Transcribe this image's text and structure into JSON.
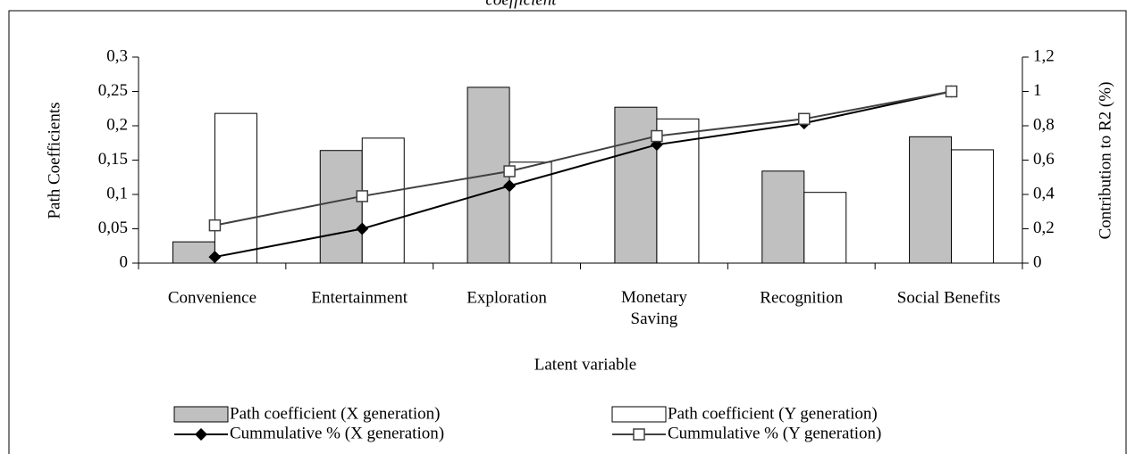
{
  "chart_data": {
    "type": "bar",
    "title": "coefficient",
    "x_label": "Latent variable",
    "y_label": "Path Coefficients",
    "y2_label": "Contribution to R2 (%)",
    "categories": [
      "Convenience",
      "Entertainment",
      "Exploration",
      "Monetary\nSaving",
      "Recognition",
      "Social Benefits"
    ],
    "ylim": [
      0,
      0.3
    ],
    "yticks": [
      0,
      {
        "value": 0.05,
        "label": "0,05"
      },
      {
        "value": 0.1,
        "label": "0,1"
      },
      {
        "value": 0.15,
        "label": "0,15"
      },
      {
        "value": 0.2,
        "label": "0,2"
      },
      {
        "value": 0.25,
        "label": "0,25"
      },
      {
        "value": 0.3,
        "label": "0,3"
      }
    ],
    "y2lim": [
      0,
      1.2
    ],
    "y2ticks": [
      0,
      {
        "value": 0.2,
        "label": "0,2"
      },
      {
        "value": 0.4,
        "label": "0,4"
      },
      {
        "value": 0.6,
        "label": "0,6"
      },
      {
        "value": 0.8,
        "label": "0,8"
      },
      1,
      {
        "value": 1.2,
        "label": "1,2"
      }
    ],
    "series": [
      {
        "name": "Path coefficient (X generation)",
        "type": "bar",
        "color": "#c0c0c0",
        "values": [
          0.031,
          0.164,
          0.256,
          0.227,
          0.134,
          0.184
        ]
      },
      {
        "name": "Path coefficient (Y generation)",
        "type": "bar",
        "color": "#ffffff",
        "values": [
          0.218,
          0.182,
          0.147,
          0.21,
          0.103,
          0.165
        ]
      },
      {
        "name": "Cummulative % (X generation)",
        "type": "line",
        "axis": "y2",
        "color": "#000000",
        "marker": "diamond",
        "values": [
          0.036,
          0.2,
          0.45,
          0.69,
          0.815,
          1.0
        ]
      },
      {
        "name": "Cummulative % (Y generation)",
        "type": "line",
        "axis": "y2",
        "color": "#404040",
        "marker": "square",
        "values": [
          0.22,
          0.39,
          0.535,
          0.74,
          0.84,
          1.0
        ]
      }
    ]
  }
}
